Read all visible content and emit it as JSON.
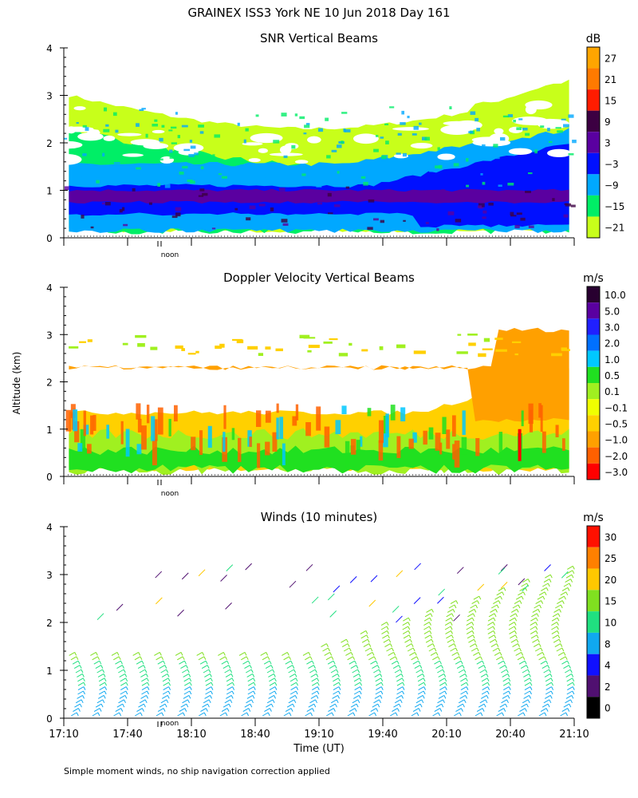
{
  "title": "GRAINEX ISS3 York NE  10 Jun 2018 Day 161",
  "y_axis_label": "Altitude (km)",
  "x_axis_label": "Time (UT)",
  "footnote": "Simple moment winds, no ship navigation correction applied",
  "noon_marker": "noon",
  "noon_time": "17:55",
  "time_ticks": [
    "17:10",
    "17:40",
    "18:10",
    "18:40",
    "19:10",
    "19:40",
    "20:10",
    "20:40",
    "21:10"
  ],
  "chart_data": [
    {
      "type": "heatmap",
      "title": "SNR Vertical Beams",
      "ylabel": "Altitude (km)",
      "y_ticks": [
        "0",
        "1",
        "2",
        "3",
        "4"
      ],
      "ylim": [
        0,
        4
      ],
      "xlim": [
        "17:10",
        "21:10"
      ],
      "colorbar": {
        "unit": "dB",
        "labels": [
          "27",
          "21",
          "15",
          "9",
          "3",
          "−3",
          "−9",
          "−15",
          "−21"
        ],
        "colors": [
          "#ffa500",
          "#ff7a00",
          "#ff1c00",
          "#3c0042",
          "#5a00a0",
          "#0010ff",
          "#00a8ff",
          "#00ee66",
          "#c8ff1a"
        ]
      },
      "layers": [
        {
          "band": "low",
          "value_db": -21,
          "altitude_km_by_time": {
            "17:10": [
              0.2,
              3.0
            ],
            "19:10": [
              0.2,
              2.3
            ],
            "21:10": [
              0.2,
              3.2
            ]
          }
        },
        {
          "band": "strong",
          "value_db": 3,
          "altitude_km_by_time": {
            "17:10": [
              0.5,
              1.1
            ],
            "19:10": [
              0.5,
              1.0
            ],
            "21:10": [
              0.5,
              2.0
            ]
          }
        }
      ]
    },
    {
      "type": "heatmap",
      "title": "Doppler Velocity Vertical Beams",
      "ylabel": "Altitude (km)",
      "y_ticks": [
        "0",
        "1",
        "2",
        "3",
        "4"
      ],
      "ylim": [
        0,
        4
      ],
      "xlim": [
        "17:10",
        "21:10"
      ],
      "colorbar": {
        "unit": "m/s",
        "labels": [
          "10.0",
          "5.0",
          "3.0",
          "2.0",
          "1.0",
          "0.5",
          "0.1",
          "−0.1",
          "−0.5",
          "−1.0",
          "−2.0",
          "−3.0"
        ],
        "colors": [
          "#280030",
          "#5a00a0",
          "#2020ff",
          "#0070ff",
          "#00c8ff",
          "#20e020",
          "#a0f020",
          "#f0ff00",
          "#ffd000",
          "#ffa000",
          "#ff6000",
          "#ff0000"
        ]
      }
    },
    {
      "type": "wind_barbs",
      "title": "Winds (10 minutes)",
      "ylabel": "Altitude (km)",
      "y_ticks": [
        "0",
        "1",
        "2",
        "3",
        "4"
      ],
      "ylim": [
        0,
        4
      ],
      "xlabel": "Time (UT)",
      "xlim": [
        "17:10",
        "21:10"
      ],
      "colorbar": {
        "unit": "m/s",
        "labels": [
          "30",
          "25",
          "20",
          "15",
          "10",
          "8",
          "4",
          "2",
          "0"
        ],
        "colors": [
          "#ff1000",
          "#ff8000",
          "#ffc800",
          "#80e020",
          "#20e080",
          "#10a8f0",
          "#1010ff",
          "#501070",
          "#000000"
        ]
      }
    }
  ]
}
